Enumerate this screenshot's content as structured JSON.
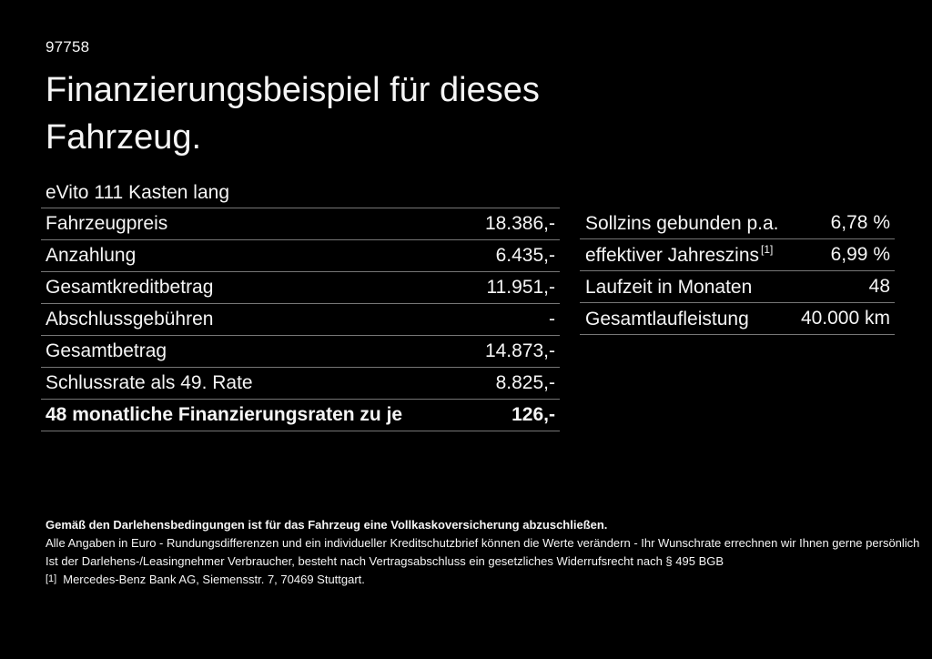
{
  "page": {
    "id_number": "97758",
    "title_line1": "Finanzierungsbeispiel für dieses",
    "title_line2": "Fahrzeug.",
    "vehicle_name": "eVito 111 Kasten lang"
  },
  "left_table": {
    "rows": [
      {
        "label": "Fahrzeugpreis",
        "value": "18.386,-"
      },
      {
        "label": "Anzahlung",
        "value": "6.435,-"
      },
      {
        "label": "Gesamtkreditbetrag",
        "value": "11.951,-"
      },
      {
        "label": "Abschlussgebühren",
        "value": "-"
      },
      {
        "label": "Gesamtbetrag",
        "value": "14.873,-"
      },
      {
        "label": "Schlussrate als 49. Rate",
        "value": "8.825,-"
      },
      {
        "label": "48 monatliche Finanzierungsraten zu je",
        "value": "126,-"
      }
    ]
  },
  "right_table": {
    "rows": [
      {
        "label": "Sollzins gebunden p.a.",
        "value": "6,78 %"
      },
      {
        "label": "effektiver Jahreszins",
        "superscript": "[1]",
        "value": "6,99 %"
      },
      {
        "label": "Laufzeit in Monaten",
        "value": "48"
      },
      {
        "label": "Gesamtlaufleistung",
        "value": "40.000 km"
      }
    ]
  },
  "footer": {
    "bold_note": "Gemäß den Darlehensbedingungen ist für das Fahrzeug eine Vollkaskoversicherung abzuschließen.",
    "note_line1": "Alle Angaben in Euro - Rundungsdifferenzen und ein individueller Kreditschutzbrief können die Werte verändern - Ihr Wunschrate errechnen wir Ihnen gerne persönlich",
    "note_line2": "Ist der Darlehens-/Leasingnehmer Verbraucher, besteht nach Vertragsabschluss ein gesetzliches Widerrufsrecht nach § 495 BGB",
    "footnote_marker": "[1]",
    "footnote_text": "Mercedes-Benz Bank AG, Siemensstr. 7, 70469 Stuttgart."
  },
  "colors": {
    "background": "#000000",
    "text": "#f5f5f5",
    "divider": "#767676"
  }
}
